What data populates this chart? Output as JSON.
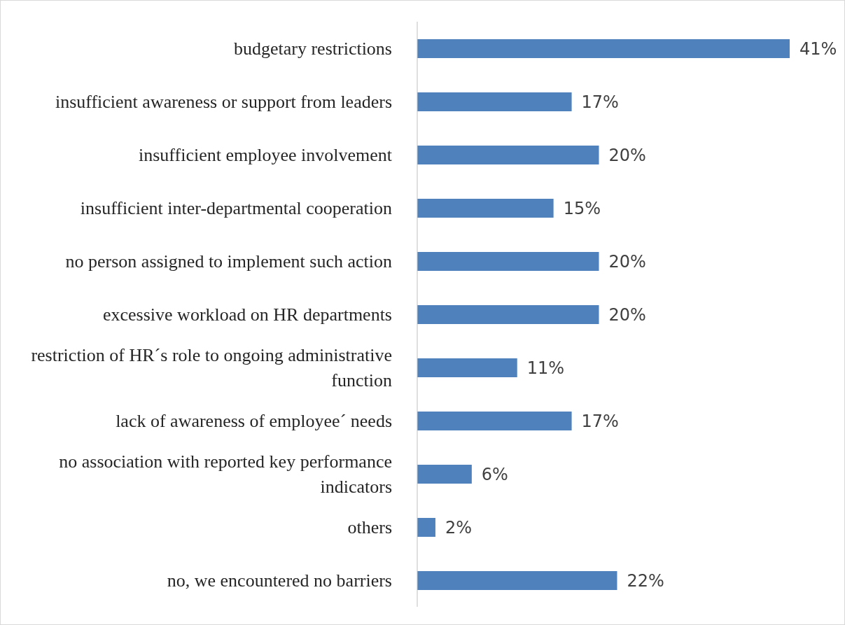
{
  "chart_data": {
    "type": "bar",
    "orientation": "horizontal",
    "categories": [
      "budgetary restrictions",
      "insufficient awareness or support from leaders",
      "insufficient employee involvement",
      "insufficient inter-departmental cooperation",
      "no person assigned to implement such action",
      "excessive workload on HR departments",
      "restriction of HR´s role to ongoing administrative function",
      "lack of awareness of employee´ needs",
      "no association with reported key performance indicators",
      "others",
      "no, we encountered no barriers"
    ],
    "values": [
      41,
      17,
      20,
      15,
      20,
      20,
      11,
      17,
      6,
      2,
      22
    ],
    "value_labels": [
      "41%",
      "17%",
      "20%",
      "15%",
      "20%",
      "20%",
      "11%",
      "17%",
      "6%",
      "2%",
      "22%"
    ],
    "color": "#4f81bd",
    "grid": false,
    "legend": false
  }
}
